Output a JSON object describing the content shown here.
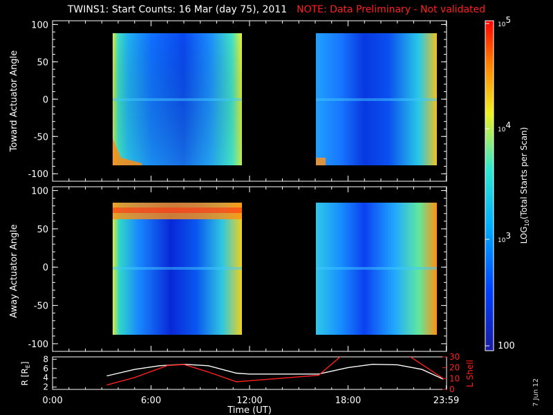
{
  "title": {
    "main": "TWINS1: Start Counts: 16 Mar (day  75), 2011",
    "note": "NOTE: Data Preliminary - Not validated"
  },
  "stamp": "7 Jun 12",
  "colors": {
    "background": "#000000",
    "axes": "#ffffff",
    "note": "#ff2020",
    "r_line": "#ffffff",
    "lshell_line": "#ff2020",
    "colormap": [
      "#1a1aa0",
      "#0050ff",
      "#00c8ff",
      "#30e0c0",
      "#e8f020",
      "#ff9000",
      "#ff1010"
    ]
  },
  "chart_data": [
    {
      "type": "heatmap",
      "panel": "toward",
      "ylabel": "Toward Actuator Angle",
      "xlim": [
        "0:00",
        "24:00"
      ],
      "ylim": [
        -110,
        105
      ],
      "yticks": [
        100,
        50,
        0,
        -50,
        -100
      ],
      "data_extent_deg": [
        -88,
        90
      ],
      "observation_intervals_UT": [
        [
          "3:20",
          "11:20"
        ],
        [
          "16:10",
          "23:50"
        ]
      ]
    },
    {
      "type": "heatmap",
      "panel": "away",
      "ylabel": "Away Actuator Angle",
      "xlim": [
        "0:00",
        "24:00"
      ],
      "ylim": [
        -110,
        105
      ],
      "yticks": [
        100,
        50,
        0,
        -50,
        -100
      ],
      "data_extent_deg": [
        -88,
        90
      ],
      "observation_intervals_UT": [
        [
          "3:20",
          "11:20"
        ],
        [
          "16:10",
          "23:50"
        ]
      ]
    },
    {
      "type": "line",
      "panel": "ephemeris",
      "ylabel_left": "R [R",
      "ylabel_left_sub": "E",
      "ylabel_left_end": "]",
      "ylabel_right": "L Shell",
      "yticks_left": [
        2,
        4,
        6,
        8
      ],
      "yticks_right": [
        0,
        10,
        20,
        30
      ],
      "ylim_left": [
        1.5,
        8.5
      ],
      "ylim_right": [
        0,
        30
      ],
      "xlabel": "Time (UT)",
      "xticks": [
        "0:00",
        "6:00",
        "12:00",
        "18:00",
        "23:59"
      ],
      "series": [
        {
          "axis": "left",
          "x_hours": [
            3.3,
            5,
            6.5,
            8,
            9.5,
            11.2,
            12,
            16.2,
            18,
            19.5,
            21,
            22.5,
            23.8
          ],
          "values": [
            4.4,
            5.8,
            6.6,
            6.9,
            6.6,
            5.0,
            4.8,
            4.8,
            6.2,
            6.9,
            6.8,
            5.8,
            3.7
          ]
        },
        {
          "axis": "right",
          "x_hours": [
            3.3,
            5,
            7,
            8,
            9.5,
            11.2,
            16.2,
            17.6,
            18.0,
            21.5,
            23.8
          ],
          "values": [
            4,
            11,
            22,
            23,
            16,
            7,
            13,
            31,
            34,
            33,
            10
          ]
        }
      ]
    }
  ],
  "colorbar": {
    "label_prefix": "LOG",
    "label_sub": "10",
    "label_rest": "(Total Starts per Scan)",
    "ticks": [
      {
        "base": "10",
        "exp": "5"
      },
      {
        "base": "10",
        "exp": "4"
      },
      {
        "base": "10",
        "exp": "3"
      },
      {
        "base": "100",
        "exp": ""
      }
    ]
  }
}
